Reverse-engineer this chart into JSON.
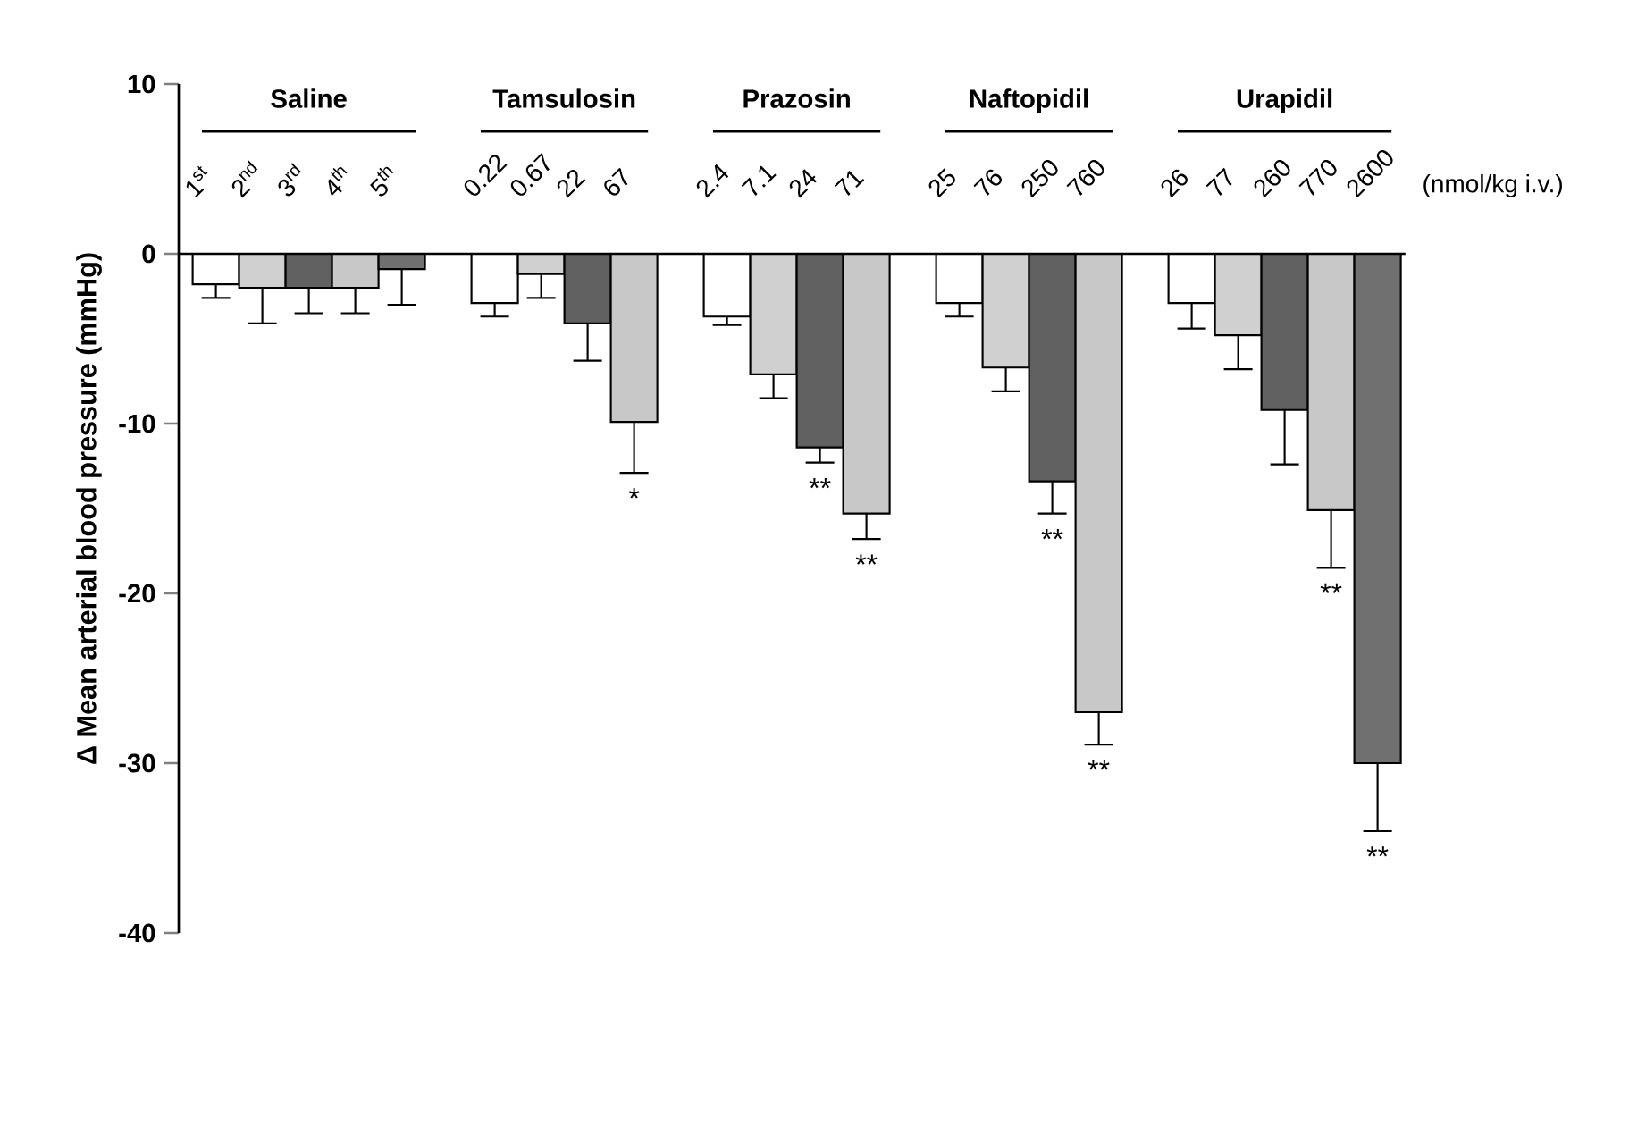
{
  "chart_data": {
    "type": "bar",
    "ylabel": "Δ Mean arterial blood pressure (mmHg)",
    "categories": [
      "1$^{st}$",
      "2$^{nd}$",
      "3$^{rd}$",
      "4$^{th}$",
      "5$^{th}$",
      null,
      "0.22",
      "0.67",
      "22",
      "67",
      null,
      "2.4",
      "7.1",
      "24",
      "71",
      null,
      "25",
      "76",
      "250",
      "760",
      null,
      "26",
      "77",
      "260",
      "770",
      "2600"
    ],
    "values": [
      -1.8,
      -2.0,
      -2.0,
      -2.0,
      -0.9,
      null,
      -2.9,
      -1.2,
      -4.1,
      -9.9,
      null,
      -3.7,
      -7.1,
      -11.4,
      -15.3,
      null,
      -2.9,
      -6.7,
      -13.4,
      -27,
      null,
      -2.9,
      -4.8,
      -9.2,
      -15.1,
      -30
    ],
    "errors": [
      [
        -2.6,
        -1.8
      ],
      [
        -4.1,
        -2.0
      ],
      [
        -3.5,
        -2.0
      ],
      [
        -3.5,
        -2.0
      ],
      [
        -3.0,
        -0.9
      ],
      null,
      [
        -3.7,
        -2.9
      ],
      [
        -2.6,
        -1.2
      ],
      [
        -6.3,
        -4.1
      ],
      [
        -12.9,
        -9.9
      ],
      null,
      [
        -4.2,
        -3.7
      ],
      [
        -8.5,
        -7.1
      ],
      [
        -12.3,
        -11.4
      ],
      [
        -16.8,
        -15.3
      ],
      null,
      [
        -3.7,
        -2.9
      ],
      [
        -8.1,
        -6.7
      ],
      [
        -15.3,
        -13.4
      ],
      [
        -28.9,
        -27
      ],
      null,
      [
        -4.4,
        -2.9
      ],
      [
        -6.8,
        -4.8
      ],
      [
        -12.4,
        -9.2
      ],
      [
        -18.5,
        -15.1
      ],
      [
        -34,
        -30
      ]
    ],
    "colors": [
      "#ffffff",
      "#d0d0d0",
      "#606060",
      "#c8c8c8",
      "#707070",
      null,
      "#ffffff",
      "#d0d0d0",
      "#606060",
      "#c8c8c8",
      null,
      "#ffffff",
      "#d0d0d0",
      "#606060",
      "#c8c8c8",
      null,
      "#ffffff",
      "#d0d0d0",
      "#606060",
      "#c8c8c8",
      null,
      "#ffffff",
      "#d0d0d0",
      "#606060",
      "#c8c8c8",
      "#707070"
    ],
    "ylim": [
      -40,
      10
    ],
    "yticks": [
      -40,
      -30,
      -20,
      -10,
      0,
      10
    ],
    "annotations": [
      "Saline",
      "Tamsulosin",
      "Prazosin",
      "Naftopidil",
      "Urapidil",
      "(nmol/kg i.v.)",
      {
        "text": "*",
        "x": "67",
        "y": -12.9
      },
      {
        "text": "**",
        "x": "24",
        "y": -12.3
      },
      {
        "text": "**",
        "x": "71",
        "y": -16.8
      },
      {
        "text": "**",
        "x": "250",
        "y": -15.3
      },
      {
        "text": "**",
        "x": "760",
        "y": -28.9
      },
      {
        "text": "**",
        "x": "770",
        "y": -18.5
      },
      {
        "text": "**",
        "x": "2600",
        "y": -34
      }
    ]
  }
}
